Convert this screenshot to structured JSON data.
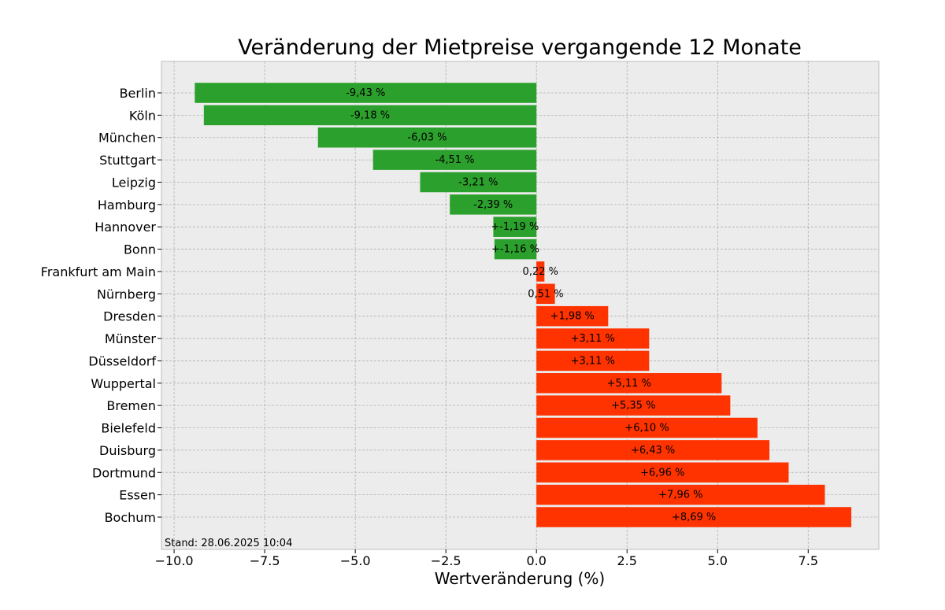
{
  "chart_data": {
    "type": "bar",
    "orientation": "horizontal",
    "title": "Veränderung der Mietpreise vergangende 12 Monate",
    "xlabel": "Wertveränderung (%)",
    "ylabel": "",
    "xlim": [
      -10.35,
      9.45
    ],
    "xticks": [
      -10.0,
      -7.5,
      -5.0,
      -2.5,
      0.0,
      2.5,
      5.0,
      7.5
    ],
    "xtick_labels": [
      "−10.0",
      "−7.5",
      "−5.0",
      "−2.5",
      "0.0",
      "2.5",
      "5.0",
      "7.5"
    ],
    "grid": true,
    "categories": [
      "Berlin",
      "Köln",
      "München",
      "Stuttgart",
      "Leipzig",
      "Hamburg",
      "Hannover",
      "Bonn",
      "Frankfurt am Main",
      "Nürnberg",
      "Dresden",
      "Münster",
      "Düsseldorf",
      "Wuppertal",
      "Bremen",
      "Bielefeld",
      "Duisburg",
      "Dortmund",
      "Essen",
      "Bochum"
    ],
    "values": [
      -9.43,
      -9.18,
      -6.03,
      -4.51,
      -3.21,
      -2.39,
      -1.19,
      -1.16,
      0.22,
      0.51,
      1.98,
      3.11,
      3.11,
      5.11,
      5.35,
      6.1,
      6.43,
      6.96,
      7.96,
      8.69
    ],
    "data_labels": [
      "-9,43 %",
      "-9,18 %",
      "-6,03 %",
      "-4,51 %",
      "-3,21 %",
      "-2,39 %",
      "+-1,19 %",
      "+-1,16 %",
      "0,22 %",
      "0,51 %",
      "+1,98 %",
      "+3,11 %",
      "+3,11 %",
      "+5,11 %",
      "+5,35 %",
      "+6,10 %",
      "+6,43 %",
      "+6,96 %",
      "+7,96 %",
      "+8,69 %"
    ],
    "colors": {
      "negative": "#2ca02c",
      "positive": "#ff3300",
      "plot_background": "#ececec",
      "plot_border": "#bcbcbc"
    },
    "footnote": "Stand: 28.06.2025 10:04"
  }
}
